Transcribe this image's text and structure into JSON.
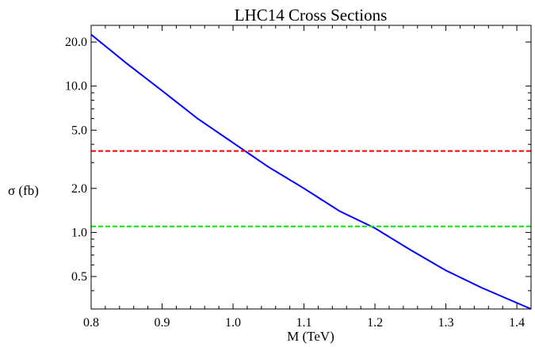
{
  "chart_data": {
    "type": "line",
    "title": "LHC14 Cross Sections",
    "xlabel": "M (TeV)",
    "ylabel": "σ (fb)",
    "xlim": [
      0.8,
      1.42
    ],
    "ylim": [
      0.3,
      26.0
    ],
    "yscale": "log",
    "grid": false,
    "xticks": [
      {
        "value": 0.8,
        "label": "0.8"
      },
      {
        "value": 0.9,
        "label": "0.9"
      },
      {
        "value": 1.0,
        "label": "1.0"
      },
      {
        "value": 1.1,
        "label": "1.1"
      },
      {
        "value": 1.2,
        "label": "1.2"
      },
      {
        "value": 1.3,
        "label": "1.3"
      },
      {
        "value": 1.4,
        "label": "1.4"
      }
    ],
    "yticks": [
      {
        "value": 0.5,
        "label": "0.5"
      },
      {
        "value": 1.0,
        "label": "1.0"
      },
      {
        "value": 2.0,
        "label": "2.0"
      },
      {
        "value": 5.0,
        "label": "5.0"
      },
      {
        "value": 10.0,
        "label": "10.0"
      },
      {
        "value": 20.0,
        "label": "20.0"
      }
    ],
    "series": [
      {
        "style": "solid",
        "color": "#0000ff",
        "x": [
          0.8,
          0.85,
          0.9,
          0.95,
          1.0,
          1.05,
          1.1,
          1.15,
          1.2,
          1.25,
          1.3,
          1.35,
          1.42
        ],
        "y": [
          22.5,
          14.3,
          9.3,
          6.0,
          4.1,
          2.8,
          2.0,
          1.4,
          1.07,
          0.76,
          0.55,
          0.42,
          0.3
        ]
      },
      {
        "style": "dashed",
        "color": "#ff0000",
        "x": [
          0.8,
          1.42
        ],
        "y": [
          3.6,
          3.6
        ]
      },
      {
        "style": "dashed",
        "color": "#00e600",
        "x": [
          0.8,
          1.42
        ],
        "y": [
          1.1,
          1.1
        ]
      }
    ]
  }
}
